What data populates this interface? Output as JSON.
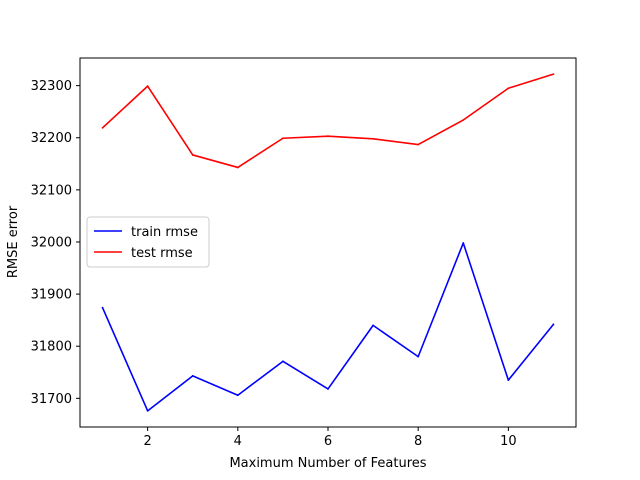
{
  "chart_data": {
    "type": "line",
    "title": "",
    "xlabel": "Maximum Number of Features",
    "ylabel": "RMSE error",
    "xlim": [
      0.5,
      11.5
    ],
    "ylim": [
      31645,
      32353
    ],
    "xticks": [
      2,
      4,
      6,
      8,
      10
    ],
    "yticks": [
      31700,
      31800,
      31900,
      32000,
      32100,
      32200,
      32300
    ],
    "x": [
      1,
      2,
      3,
      4,
      5,
      6,
      7,
      8,
      9,
      10,
      11
    ],
    "series": [
      {
        "name": "train rmse",
        "color": "#0000ff",
        "values": [
          31874,
          31676,
          31743,
          31706,
          31771,
          31718,
          31840,
          31780,
          31998,
          31735,
          31842
        ]
      },
      {
        "name": "test rmse",
        "color": "#ff0000",
        "values": [
          32219,
          32299,
          32167,
          32143,
          32199,
          32203,
          32198,
          32187,
          32234,
          32295,
          32322
        ]
      }
    ],
    "grid": false,
    "legend_position": "center-left"
  }
}
